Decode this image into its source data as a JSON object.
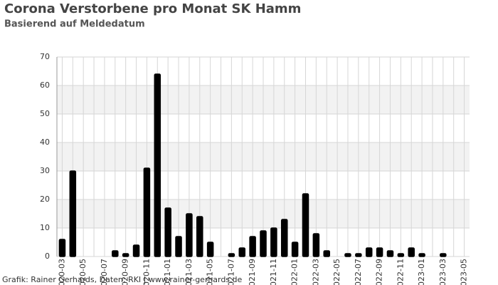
{
  "chart_data": {
    "type": "bar",
    "title": "Corona Verstorbene pro Monat SK Hamm",
    "subtitle": "Basierend auf Meldedatum",
    "footer": "Grafik: Rainer Gerhards, Daten: RKI | www.rainer-gerhards.de",
    "categories": [
      "2020-03",
      null,
      "2020-05",
      null,
      "2020-07",
      null,
      "2020-09",
      null,
      "2020-11",
      null,
      "2021-01",
      null,
      "2021-03",
      null,
      "2021-05",
      null,
      "2021-07",
      null,
      "2021-09",
      null,
      "2021-11",
      null,
      "2022-01",
      null,
      "2022-03",
      null,
      "2022-05",
      null,
      "2022-07",
      null,
      "2022-09",
      null,
      "2022-11",
      null,
      "2023-01",
      null,
      "2023-03",
      null,
      "2023-05"
    ],
    "values": [
      6,
      30,
      0,
      0,
      0,
      2,
      1,
      4,
      31,
      64,
      17,
      7,
      15,
      14,
      5,
      0,
      1,
      3,
      7,
      9,
      10,
      13,
      5,
      22,
      8,
      2,
      0,
      1,
      1,
      3,
      3,
      2,
      1,
      3,
      1,
      0,
      1,
      0,
      0
    ],
    "color": "#000000",
    "ylim": [
      0,
      70
    ],
    "yticks": [
      0,
      10,
      20,
      30,
      40,
      50,
      60,
      70
    ],
    "grid": true
  }
}
